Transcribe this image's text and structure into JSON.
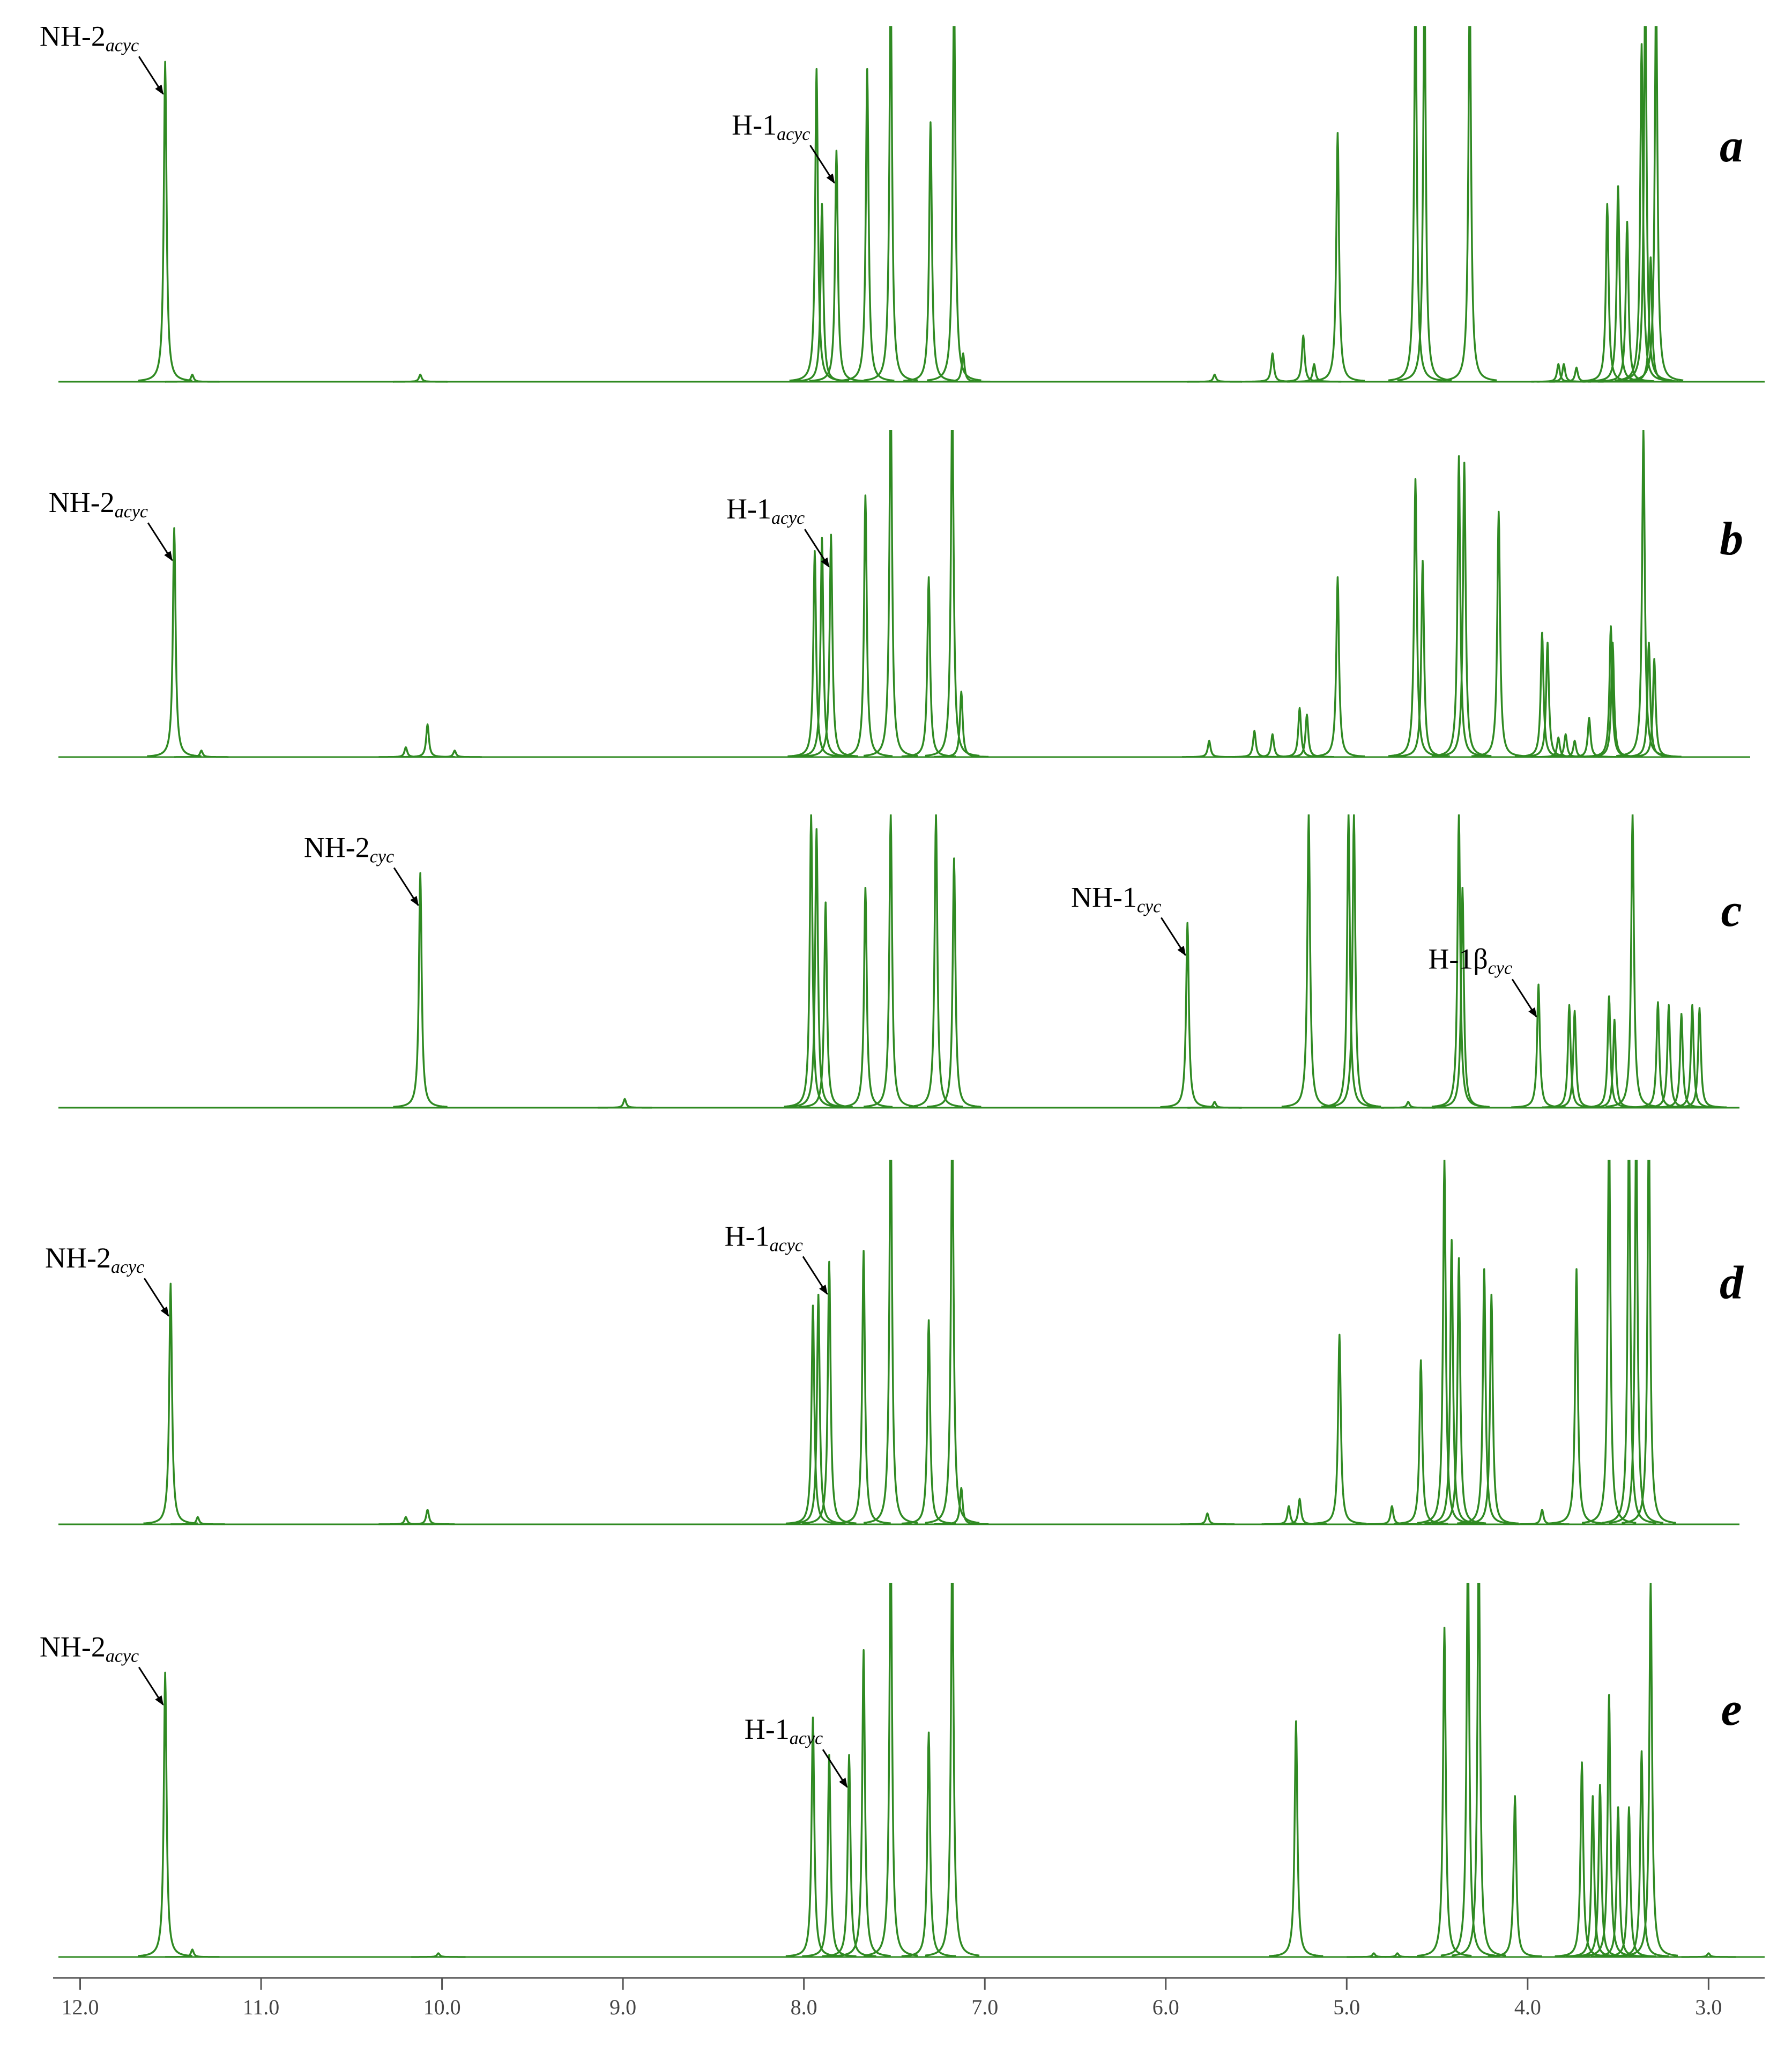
{
  "chart_data": {
    "type": "nmr_stack",
    "color": "#2f8a22",
    "xlim": [
      12.12,
      2.69
    ],
    "xticks": [
      {
        "value": 12,
        "label": "12.0"
      },
      {
        "value": 11,
        "label": "11.0"
      },
      {
        "value": 10,
        "label": "10.0"
      },
      {
        "value": 9,
        "label": "9.0"
      },
      {
        "value": 8,
        "label": "8.0"
      },
      {
        "value": 7,
        "label": "7.0"
      },
      {
        "value": 6,
        "label": "6.0"
      },
      {
        "value": 5,
        "label": "5.0"
      },
      {
        "value": 4,
        "label": "4.0"
      },
      {
        "value": 3,
        "label": "3.0"
      }
    ],
    "ylim": [
      0,
      100
    ],
    "spectra": [
      {
        "label": "a",
        "peaks": {
          "x": [
            11.53,
            11.38,
            10.12,
            7.93,
            7.9,
            7.82,
            7.65,
            7.52,
            7.3,
            7.17,
            7.12,
            5.73,
            5.41,
            5.24,
            5.18,
            5.05,
            4.62,
            4.57,
            4.32,
            3.83,
            3.8,
            3.73,
            3.56,
            3.5,
            3.45,
            3.37,
            3.35,
            3.32,
            3.29
          ],
          "y": [
            90,
            2,
            2,
            88,
            50,
            65,
            88,
            110,
            73,
            110,
            8,
            2,
            8,
            13,
            5,
            70,
            110,
            110,
            110,
            5,
            5,
            4,
            50,
            55,
            45,
            95,
            110,
            35,
            110
          ]
        },
        "annotations": [
          {
            "text": "NH-2",
            "sub": "acyc",
            "x": 11.53
          },
          {
            "text": "H-1",
            "sub": "acyc",
            "x": 7.82
          }
        ]
      },
      {
        "label": "b",
        "peaks": {
          "x": [
            11.48,
            11.33,
            10.2,
            10.08,
            9.93,
            7.94,
            7.9,
            7.85,
            7.66,
            7.52,
            7.31,
            7.18,
            7.13,
            5.76,
            5.51,
            5.41,
            5.26,
            5.22,
            5.05,
            4.62,
            4.58,
            4.38,
            4.35,
            4.16,
            3.92,
            3.89,
            3.83,
            3.79,
            3.74,
            3.66,
            3.54,
            3.53,
            3.36,
            3.33,
            3.3
          ],
          "y": [
            70,
            2,
            3,
            10,
            2,
            63,
            67,
            68,
            80,
            110,
            55,
            110,
            20,
            5,
            8,
            7,
            15,
            13,
            55,
            85,
            60,
            92,
            90,
            75,
            38,
            35,
            6,
            7,
            5,
            12,
            40,
            35,
            100,
            35,
            30
          ]
        },
        "annotations": [
          {
            "text": "NH-2",
            "sub": "acyc",
            "x": 11.48
          },
          {
            "text": "H-1",
            "sub": "acyc",
            "x": 7.85
          }
        ]
      },
      {
        "label": "c",
        "peaks": {
          "x": [
            10.12,
            8.99,
            7.96,
            7.93,
            7.88,
            7.66,
            7.52,
            7.27,
            7.17,
            5.88,
            5.73,
            5.21,
            4.99,
            4.96,
            4.66,
            4.38,
            4.36,
            3.94,
            3.77,
            3.74,
            3.55,
            3.52,
            3.42,
            3.28,
            3.22,
            3.15,
            3.09,
            3.05
          ],
          "y": [
            80,
            3,
            100,
            95,
            70,
            75,
            100,
            100,
            85,
            63,
            2,
            100,
            100,
            100,
            2,
            100,
            75,
            42,
            35,
            33,
            38,
            30,
            100,
            36,
            35,
            32,
            35,
            34
          ]
        },
        "annotations": [
          {
            "text": "NH-2",
            "sub": "cyc",
            "x": 10.12
          },
          {
            "text": "NH-1",
            "sub": "cyc",
            "x": 5.88
          },
          {
            "text": "H-1β",
            "sub": "cyc",
            "x": 3.94
          }
        ]
      },
      {
        "label": "d",
        "peaks": {
          "x": [
            11.5,
            11.35,
            10.2,
            10.08,
            7.95,
            7.92,
            7.86,
            7.67,
            7.52,
            7.31,
            7.18,
            7.13,
            5.77,
            5.32,
            5.26,
            5.04,
            4.75,
            4.59,
            4.46,
            4.42,
            4.38,
            4.24,
            4.2,
            3.92,
            3.73,
            3.55,
            3.44,
            3.4,
            3.33
          ],
          "y": [
            66,
            2,
            2,
            4,
            60,
            63,
            72,
            75,
            110,
            56,
            110,
            10,
            3,
            5,
            7,
            52,
            5,
            45,
            100,
            78,
            73,
            70,
            63,
            4,
            70,
            110,
            110,
            110,
            110
          ]
        },
        "annotations": [
          {
            "text": "NH-2",
            "sub": "acyc",
            "x": 11.5
          },
          {
            "text": "H-1",
            "sub": "acyc",
            "x": 7.86
          }
        ]
      },
      {
        "label": "e",
        "peaks": {
          "x": [
            11.53,
            11.38,
            10.02,
            7.95,
            7.86,
            7.75,
            7.67,
            7.52,
            7.31,
            7.18,
            5.28,
            4.85,
            4.72,
            4.46,
            4.33,
            4.27,
            4.07,
            3.7,
            3.64,
            3.6,
            3.55,
            3.5,
            3.44,
            3.37,
            3.32,
            3.0
          ],
          "y": [
            76,
            2,
            1,
            64,
            54,
            54,
            82,
            110,
            60,
            110,
            63,
            1,
            1,
            88,
            110,
            110,
            43,
            52,
            43,
            46,
            70,
            40,
            40,
            55,
            100,
            1
          ]
        },
        "annotations": [
          {
            "text": "NH-2",
            "sub": "acyc",
            "x": 11.53
          },
          {
            "text": "H-1",
            "sub": "acyc",
            "x": 7.75
          }
        ]
      }
    ]
  }
}
